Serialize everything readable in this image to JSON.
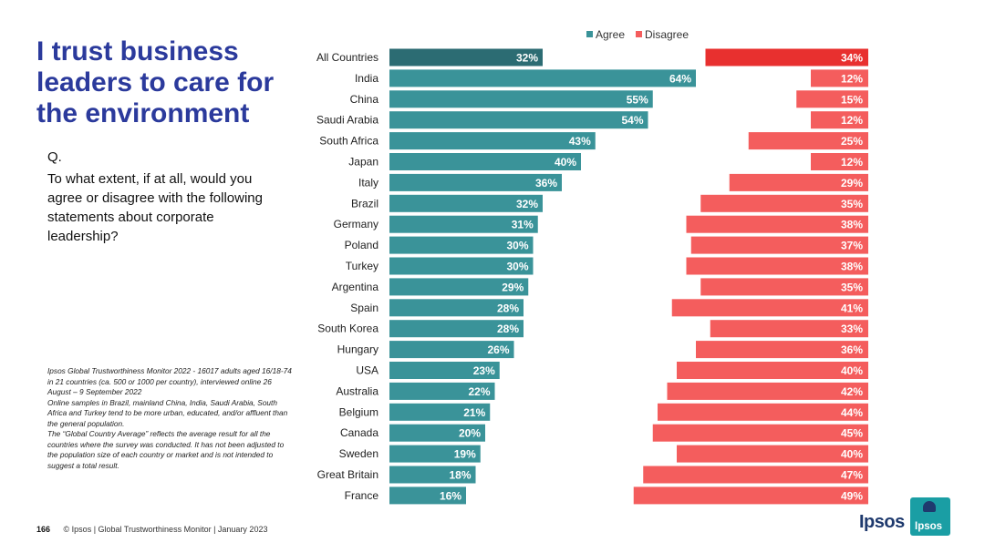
{
  "title": "I trust business leaders to care for the environment",
  "question": {
    "label": "Q.",
    "text": "To what extent, if at all, would you agree or disagree with the following statements about corporate leadership?"
  },
  "notes": [
    "Ipsos Global Trustworthiness Monitor 2022 - 16017 adults aged 16/18-74 in 21 countries (ca. 500 or 1000 per country), interviewed online 26 August – 9 September 2022",
    "Online samples in Brazil, mainland China, India, Saudi Arabia, South Africa and Turkey tend to be more urban, educated, and/or affluent than the general population.",
    "The “Global Country Average” reflects the average result for all the countries where the survey was conducted. It has not been adjusted to the population size of each country or market and is not intended to suggest a total result."
  ],
  "footer": {
    "page": "166",
    "text": "© Ipsos | Global Trustworthiness Monitor | January 2023"
  },
  "logo": {
    "word": "Ipsos",
    "box": "Ipsos"
  },
  "colors": {
    "agree": "#3a9399",
    "agree_highlight": "#2c6c73",
    "disagree": "#f45d5d",
    "disagree_highlight": "#e8302f"
  },
  "chart_data": {
    "type": "bar",
    "orientation": "horizontal",
    "title": "I trust business leaders to care for the environment",
    "legend_position": "top",
    "categories": [
      "All Countries",
      "India",
      "China",
      "Saudi Arabia",
      "South Africa",
      "Japan",
      "Italy",
      "Brazil",
      "Germany",
      "Poland",
      "Turkey",
      "Argentina",
      "Spain",
      "South Korea",
      "Hungary",
      "USA",
      "Australia",
      "Belgium",
      "Canada",
      "Sweden",
      "Great Britain",
      "France"
    ],
    "series": [
      {
        "name": "Agree",
        "values": [
          32,
          64,
          55,
          54,
          43,
          40,
          36,
          32,
          31,
          30,
          30,
          29,
          28,
          28,
          26,
          23,
          22,
          21,
          20,
          19,
          18,
          16
        ]
      },
      {
        "name": "Disagree",
        "values": [
          34,
          12,
          15,
          12,
          25,
          12,
          29,
          35,
          38,
          37,
          38,
          35,
          41,
          33,
          36,
          40,
          42,
          44,
          45,
          40,
          47,
          49
        ]
      }
    ],
    "value_suffix": "%"
  }
}
